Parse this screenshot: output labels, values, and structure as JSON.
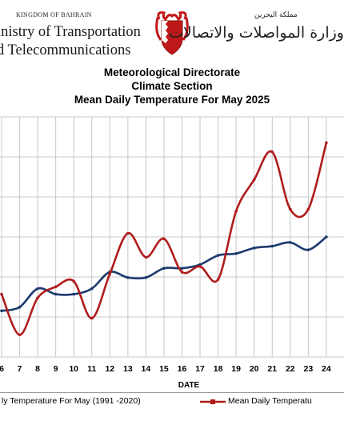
{
  "header": {
    "kingdom": "KINGDOM OF BAHRAIN",
    "ministry_line1": "inistry of Transportation",
    "ministry_line2": "d Telecommunications",
    "arabic_small": "مملكة البحرين",
    "arabic_big": "وزارة المواصلات والاتصالات"
  },
  "colors": {
    "normal_series": "#1c3a6e",
    "current_series": "#b01c1c",
    "grid": "#c8c8c8"
  },
  "chart_data": {
    "type": "line",
    "title": [
      "Meteorological Directorate",
      "Climate Section",
      "Mean Daily Temperature For May 2025"
    ],
    "xlabel": "DATE",
    "ylabel": "",
    "x": [
      6,
      7,
      8,
      9,
      10,
      11,
      12,
      13,
      14,
      15,
      16,
      17,
      18,
      19,
      20,
      21,
      22,
      23,
      24
    ],
    "grid": true,
    "legend_placement": "bottom",
    "series": [
      {
        "name": "ly Temperature For May (1991 -2020)",
        "values": [
          4.5,
          4.7,
          5.7,
          5.4,
          5.4,
          5.7,
          6.6,
          6.3,
          6.3,
          6.8,
          6.8,
          7.0,
          7.5,
          7.6,
          7.9,
          8.0,
          8.2,
          7.8,
          8.5
        ]
      },
      {
        "name": "Mean Daily Temperatu",
        "values": [
          5.4,
          3.2,
          5.2,
          5.8,
          6.1,
          4.1,
          6.5,
          8.7,
          7.4,
          8.4,
          6.6,
          6.9,
          6.2,
          9.9,
          11.6,
          13.1,
          10.0,
          10.0,
          13.6
        ]
      }
    ]
  }
}
